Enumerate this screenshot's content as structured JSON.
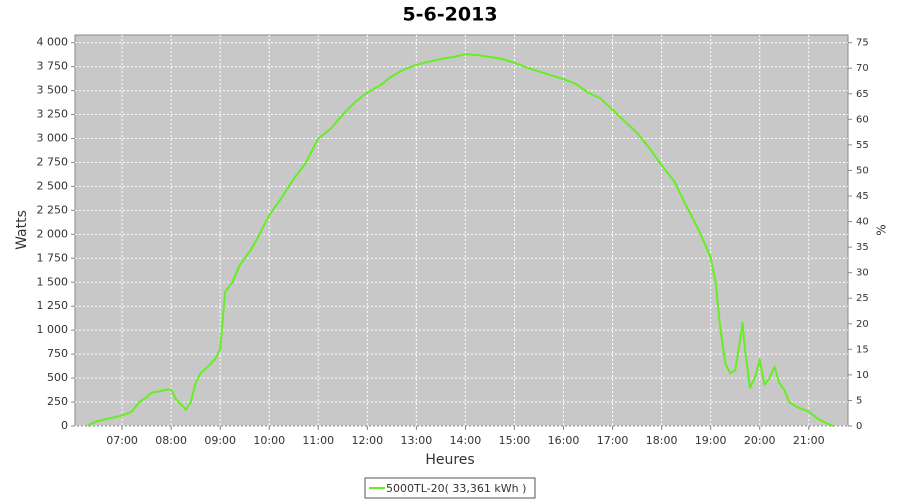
{
  "chart_data": {
    "type": "line",
    "title": "5-6-2013",
    "x_label": "Heures",
    "y_label": "Watts",
    "y2_label": "%",
    "x": [
      6.3,
      6.35,
      6.5,
      6.75,
      7.0,
      7.2,
      7.35,
      7.5,
      7.6,
      7.75,
      7.9,
      8.0,
      8.1,
      8.25,
      8.3,
      8.4,
      8.5,
      8.6,
      8.75,
      8.9,
      9.0,
      9.1,
      9.25,
      9.4,
      9.6,
      9.75,
      10.0,
      10.25,
      10.5,
      10.75,
      11.0,
      11.25,
      11.5,
      11.75,
      12.0,
      12.25,
      12.5,
      12.75,
      13.0,
      13.25,
      13.5,
      13.75,
      14.0,
      14.25,
      14.5,
      14.75,
      15.0,
      15.25,
      15.5,
      15.75,
      16.0,
      16.25,
      16.5,
      16.75,
      17.0,
      17.25,
      17.5,
      17.75,
      18.0,
      18.25,
      18.5,
      18.75,
      19.0,
      19.1,
      19.2,
      19.3,
      19.4,
      19.5,
      19.6,
      19.65,
      19.7,
      19.8,
      19.9,
      20.0,
      20.1,
      20.2,
      20.3,
      20.4,
      20.5,
      20.6,
      20.75,
      21.0,
      21.2,
      21.4,
      21.5
    ],
    "series": [
      {
        "name": "5000TL-20( 33,361 kWh )",
        "color": "#66ee22",
        "values": [
          0,
          20,
          50,
          80,
          110,
          150,
          250,
          300,
          350,
          360,
          380,
          380,
          280,
          200,
          170,
          250,
          450,
          550,
          620,
          700,
          800,
          1400,
          1500,
          1680,
          1820,
          1950,
          2200,
          2380,
          2580,
          2750,
          3000,
          3100,
          3250,
          3380,
          3480,
          3550,
          3650,
          3720,
          3770,
          3800,
          3830,
          3850,
          3880,
          3870,
          3850,
          3830,
          3790,
          3740,
          3700,
          3660,
          3620,
          3570,
          3480,
          3420,
          3300,
          3180,
          3060,
          2900,
          2720,
          2560,
          2300,
          2050,
          1760,
          1500,
          1000,
          650,
          550,
          580,
          900,
          1080,
          800,
          400,
          500,
          690,
          430,
          500,
          620,
          450,
          380,
          250,
          200,
          150,
          70,
          20,
          0
        ]
      }
    ],
    "xlim": [
      6.04,
      21.8
    ],
    "xticks": [
      {
        "value": 7,
        "label": "07:00"
      },
      {
        "value": 8,
        "label": "08:00"
      },
      {
        "value": 9,
        "label": "09:00"
      },
      {
        "value": 10,
        "label": "10:00"
      },
      {
        "value": 11,
        "label": "11:00"
      },
      {
        "value": 12,
        "label": "12:00"
      },
      {
        "value": 13,
        "label": "13:00"
      },
      {
        "value": 14,
        "label": "14:00"
      },
      {
        "value": 15,
        "label": "15:00"
      },
      {
        "value": 16,
        "label": "16:00"
      },
      {
        "value": 17,
        "label": "17:00"
      },
      {
        "value": 18,
        "label": "18:00"
      },
      {
        "value": 19,
        "label": "19:00"
      },
      {
        "value": 20,
        "label": "20:00"
      },
      {
        "value": 21,
        "label": "21:00"
      }
    ],
    "ylim": [
      0,
      4080
    ],
    "yticks": [
      0,
      250,
      500,
      750,
      {
        "value": 1000,
        "label": "1 000"
      },
      {
        "value": 1250,
        "label": "1 250"
      },
      {
        "value": 1500,
        "label": "1 500"
      },
      {
        "value": 1750,
        "label": "1 750"
      },
      {
        "value": 2000,
        "label": "2 000"
      },
      {
        "value": 2250,
        "label": "2 250"
      },
      {
        "value": 2500,
        "label": "2 500"
      },
      {
        "value": 2750,
        "label": "2 750"
      },
      {
        "value": 3000,
        "label": "3 000"
      },
      {
        "value": 3250,
        "label": "3 250"
      },
      {
        "value": 3500,
        "label": "3 500"
      },
      {
        "value": 3750,
        "label": "3 750"
      },
      {
        "value": 4000,
        "label": "4 000"
      }
    ],
    "y2lim": [
      0,
      76.5
    ],
    "y2ticks": [
      0,
      5,
      10,
      15,
      20,
      25,
      30,
      35,
      40,
      45,
      50,
      55,
      60,
      65,
      70,
      75
    ],
    "grid": true
  }
}
